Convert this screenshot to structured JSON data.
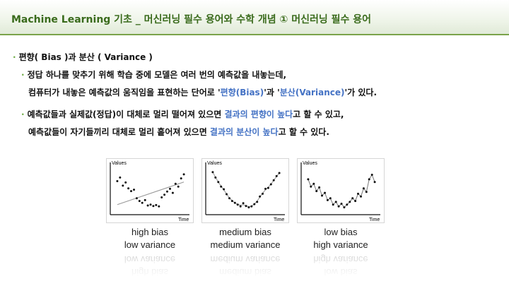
{
  "header": {
    "title": "Machine Learning 기초 _ 머신러닝 필수 용어와 수학 개념 ① 머신러닝 필수 용어"
  },
  "section": {
    "heading": "편향( Bias )과 분산 ( Variance )"
  },
  "bullet1": {
    "line1": "정답 하나를 맞추기 위해 학습 중에 모델은 여러 번의 예측값을 내놓는데,",
    "line2_pre": "컴퓨터가 내놓은 예측값의 움직임을 표현하는 단어로 '",
    "line2_hl1": "편향(Bias)",
    "line2_mid": "'과 '",
    "line2_hl2": "분산(Variance)",
    "line2_post": "'가 있다."
  },
  "bullet2": {
    "line1_pre": "예측값들과 실제값(정답)이 대체로 멀리 떨어져 있으면 ",
    "line1_hl": "결과의 편향이 높다",
    "line1_post": "고 할 수 있고,",
    "line2_pre": "예측값들이 자기들끼리 대체로 멀리 흩어져 있으면 ",
    "line2_hl": "결과의 분산이 높다",
    "line2_post": "고 할 수 있다."
  },
  "charts": [
    {
      "y_axis_label": "Values",
      "x_axis_label": "Time",
      "caption_line1": "high bias",
      "caption_line2": "low variance"
    },
    {
      "y_axis_label": "Values",
      "x_axis_label": "Time",
      "caption_line1": "medium bias",
      "caption_line2": "medium variance"
    },
    {
      "y_axis_label": "Values",
      "x_axis_label": "Time",
      "caption_line1": "low bias",
      "caption_line2": "high variance"
    }
  ],
  "chart_data": [
    {
      "type": "scatter",
      "xlabel": "Time",
      "ylabel": "Values",
      "x": [
        1,
        2,
        3,
        4,
        5,
        6,
        7,
        8,
        9,
        10,
        11,
        12,
        13,
        14,
        15,
        16,
        17,
        18,
        19,
        20,
        21,
        22,
        23,
        24,
        25
      ],
      "y": [
        6.8,
        7.6,
        5.8,
        6.5,
        5.2,
        4.6,
        4.9,
        3.0,
        2.4,
        2.0,
        2.6,
        1.4,
        1.6,
        1.3,
        1.5,
        1.2,
        3.2,
        3.8,
        4.5,
        5.1,
        4.2,
        6.2,
        5.6,
        7.4,
        8.3
      ],
      "fit": "linear",
      "fit_y": [
        1.6,
        6.6
      ]
    },
    {
      "type": "scatter",
      "xlabel": "Time",
      "ylabel": "Values",
      "x": [
        1,
        2,
        3,
        4,
        5,
        6,
        7,
        8,
        9,
        10,
        11,
        12,
        13,
        14,
        15,
        16,
        17,
        18,
        19,
        20,
        21,
        22,
        23,
        24,
        25
      ],
      "y": [
        8.8,
        7.6,
        6.6,
        5.6,
        5.0,
        3.9,
        3.0,
        2.4,
        2.0,
        1.6,
        1.2,
        1.9,
        1.3,
        1.0,
        1.2,
        1.7,
        2.2,
        3.4,
        4.0,
        5.1,
        5.3,
        6.1,
        7.0,
        7.9,
        8.6
      ],
      "fit": "curve"
    },
    {
      "type": "line",
      "xlabel": "Time",
      "ylabel": "Values",
      "x": [
        1,
        2,
        3,
        4,
        5,
        6,
        7,
        8,
        9,
        10,
        11,
        12,
        13,
        14,
        15,
        16,
        17,
        18,
        19,
        20,
        21,
        22,
        23,
        24,
        25
      ],
      "y": [
        7.2,
        5.6,
        6.2,
        4.6,
        5.4,
        3.6,
        4.2,
        2.6,
        3.0,
        1.6,
        2.2,
        1.2,
        1.8,
        1.0,
        1.6,
        2.2,
        3.0,
        2.4,
        4.0,
        3.4,
        5.2,
        4.4,
        7.2,
        8.2,
        6.6
      ]
    }
  ]
}
